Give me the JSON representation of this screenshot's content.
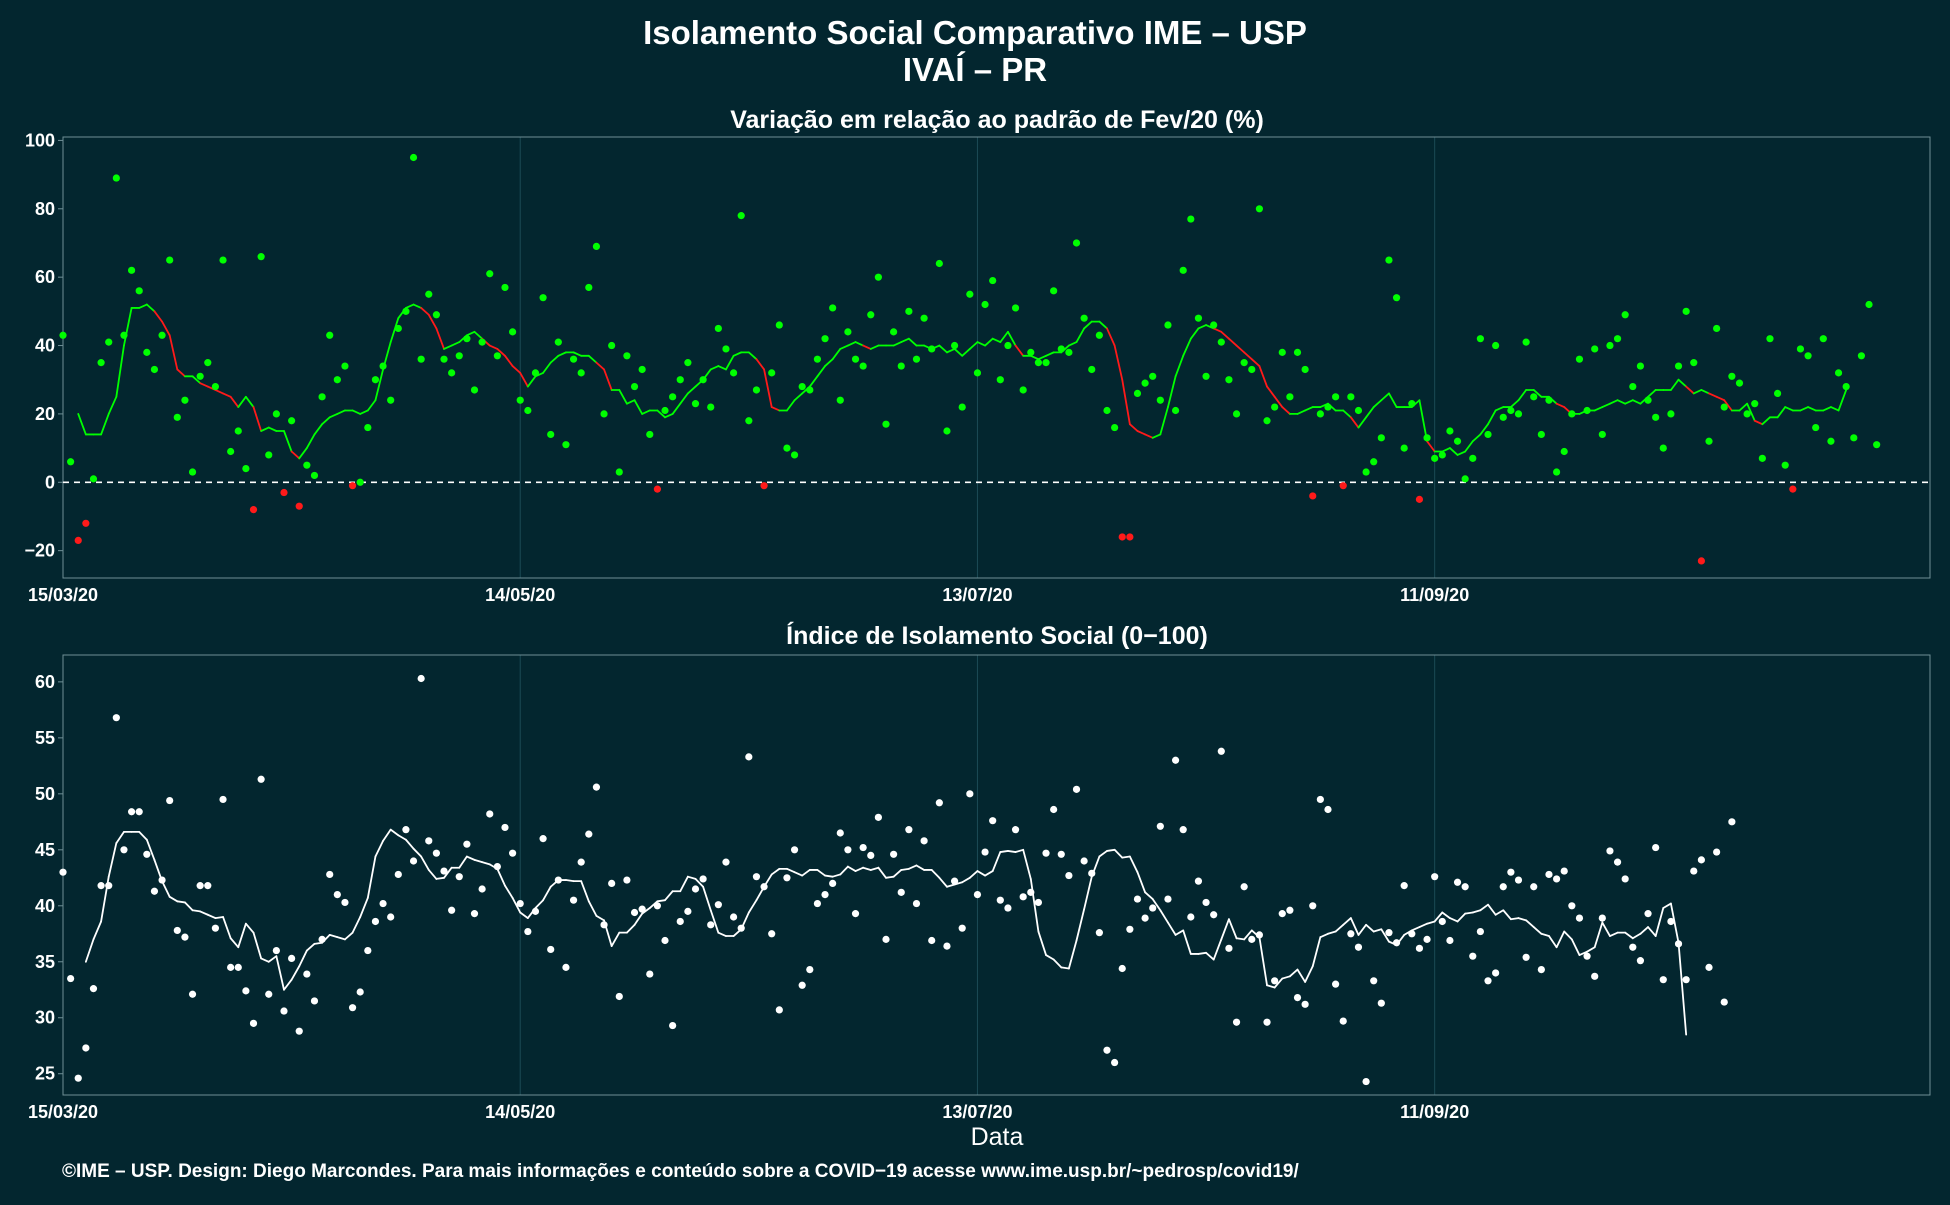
{
  "title": "Isolamento Social Comparativo IME – USP",
  "subtitle": "IVAÍ – PR",
  "caption": "©IME – USP. Design: Diego Marcondes. Para mais informações e conteúdo sobre a COVID−19 acesse www.ime.usp.br/~pedrosp/covid19/",
  "xlabel": "Data",
  "colors": {
    "background": "#03262f",
    "green": "#00ff00",
    "red": "#ff1a1a",
    "white": "#ffffff",
    "grid": "#1b4a55",
    "border": "#6f8f96"
  },
  "chart_data": [
    {
      "type": "scatter",
      "title": "Variação em relação ao padrão de Fev/20 (%)",
      "x_start": "15/03/20",
      "x_end": "15/11/20",
      "x_ticks": [
        "15/03/20",
        "14/05/20",
        "13/07/20",
        "11/09/20"
      ],
      "y_ticks": [
        "−20",
        "0",
        "20",
        "40",
        "60",
        "80",
        "100"
      ],
      "ylim": [
        -28,
        101
      ],
      "reference_line": 0,
      "grid": true,
      "series": [
        {
          "mark": "points",
          "color_rule": "green when value >= 0, red when value < 0",
          "values": [
            43,
            6,
            -17,
            -12,
            1,
            35,
            41,
            89,
            43,
            62,
            56,
            38,
            33,
            43,
            65,
            19,
            24,
            3,
            31,
            35,
            28,
            65,
            9,
            15,
            4,
            -8,
            66,
            8,
            20,
            -3,
            18,
            -7,
            5,
            2,
            25,
            43,
            30,
            34,
            -1,
            0,
            16,
            30,
            34,
            24,
            45,
            50,
            95,
            36,
            55,
            49,
            36,
            32,
            37,
            42,
            27,
            41,
            61,
            37,
            57,
            44,
            24,
            21,
            32,
            54,
            14,
            41,
            11,
            36,
            32,
            57,
            69,
            20,
            40,
            3,
            37,
            28,
            33,
            14,
            -2,
            21,
            25,
            30,
            35,
            23,
            30,
            22,
            45,
            39,
            32,
            78,
            18,
            27,
            -1,
            32,
            46,
            10,
            8,
            28,
            27,
            36,
            42,
            51,
            24,
            44,
            36,
            34,
            49,
            60,
            17,
            44,
            34,
            50,
            36,
            48,
            39,
            64,
            15,
            40,
            22,
            55,
            32,
            52,
            59,
            30,
            40,
            51,
            27,
            38,
            35,
            35,
            56,
            39,
            38,
            70,
            48,
            33,
            43,
            21,
            16,
            -16,
            -16,
            26,
            29,
            31,
            24,
            46,
            21,
            62,
            77,
            48,
            31,
            46,
            41,
            30,
            20,
            35,
            33,
            80,
            18,
            22,
            38,
            25,
            38,
            33,
            -4,
            20,
            22,
            25,
            -1,
            25,
            21,
            3,
            6,
            13,
            65,
            54,
            10,
            23,
            -5,
            13,
            7,
            8,
            15,
            12,
            1,
            7,
            42,
            14,
            40,
            19,
            21,
            20,
            41,
            25,
            14,
            24,
            3,
            9,
            20,
            36,
            21,
            39,
            14,
            40,
            42,
            49,
            28,
            34,
            24,
            19,
            10,
            20,
            34,
            50,
            35,
            -23,
            12,
            45,
            22,
            31,
            29,
            20,
            23,
            7,
            42,
            26,
            5,
            -2,
            39,
            37,
            16,
            42,
            12,
            32,
            28,
            13,
            37,
            52,
            11
          ]
        },
        {
          "mark": "line",
          "name": "moving average",
          "start_offset": 2,
          "values": [
            20,
            14,
            14,
            14,
            20,
            25,
            40,
            51,
            51,
            52,
            50,
            47,
            43,
            33,
            31,
            31,
            29,
            28,
            27,
            26,
            25,
            22,
            25,
            22,
            15,
            16,
            15,
            15,
            9,
            7,
            10,
            14,
            17,
            19,
            20,
            21,
            21,
            20,
            21,
            24,
            33,
            41,
            48,
            51,
            52,
            51,
            49,
            45,
            39,
            40,
            41,
            43,
            44,
            42,
            40,
            39,
            37,
            34,
            32,
            28,
            31,
            32,
            35,
            37,
            38,
            38,
            37,
            37,
            35,
            33,
            27,
            27,
            23,
            24,
            20,
            21,
            21,
            19,
            20,
            23,
            26,
            28,
            30,
            33,
            34,
            33,
            37,
            38,
            38,
            36,
            33,
            22,
            21,
            21,
            24,
            26,
            28,
            31,
            34,
            36,
            39,
            40,
            41,
            40,
            39,
            40,
            40,
            40,
            41,
            42,
            40,
            40,
            39,
            40,
            38,
            39,
            37,
            39,
            41,
            40,
            42,
            41,
            44,
            40,
            37,
            37,
            36,
            37,
            38,
            38,
            40,
            41,
            45,
            47,
            47,
            45,
            40,
            30,
            17,
            15,
            14,
            13,
            14,
            22,
            31,
            37,
            42,
            45,
            46,
            45,
            44,
            42,
            40,
            38,
            36,
            34,
            28,
            25,
            22,
            20,
            20,
            21,
            22,
            22,
            23,
            21,
            21,
            19,
            16,
            19,
            22,
            24,
            26,
            22,
            22,
            22,
            24,
            12,
            9,
            9,
            10,
            8,
            9,
            12,
            14,
            17,
            21,
            22,
            22,
            24,
            27,
            27,
            25,
            25,
            23,
            22,
            20,
            20,
            21,
            21,
            22,
            23,
            24,
            23,
            24,
            23,
            25,
            27,
            27,
            27,
            30,
            28,
            26,
            27,
            26,
            25,
            24,
            21,
            21,
            23,
            18,
            17,
            19,
            19,
            22,
            21,
            21,
            22,
            21,
            21,
            22,
            21,
            27
          ]
        }
      ]
    },
    {
      "type": "scatter",
      "title": "Índice de Isolamento Social (0−100)",
      "x_start": "15/03/20",
      "x_end": "15/11/20",
      "x_ticks": [
        "15/03/20",
        "14/05/20",
        "13/07/20",
        "11/09/20"
      ],
      "y_ticks": [
        "25",
        "30",
        "35",
        "40",
        "45",
        "50",
        "55",
        "60"
      ],
      "ylim": [
        23.1,
        62.4
      ],
      "grid": true,
      "series": [
        {
          "mark": "points",
          "color": "white",
          "values": [
            43,
            33.5,
            24.6,
            27.3,
            32.6,
            41.8,
            41.8,
            56.8,
            45,
            48.4,
            48.4,
            44.6,
            41.3,
            42.3,
            49.4,
            37.8,
            37.2,
            32.1,
            41.8,
            41.8,
            38,
            49.5,
            34.5,
            34.5,
            32.4,
            29.5,
            51.3,
            32.1,
            36,
            30.6,
            35.3,
            28.8,
            33.9,
            31.5,
            37,
            42.8,
            41,
            40.3,
            30.9,
            32.3,
            36,
            38.6,
            40.2,
            39,
            42.8,
            46.8,
            44,
            60.3,
            45.8,
            44.7,
            43.1,
            39.6,
            42.6,
            45.5,
            39.3,
            41.5,
            48.2,
            43.5,
            47,
            44.7,
            40.2,
            37.7,
            39.5,
            46,
            36.1,
            42.3,
            34.5,
            40.5,
            43.9,
            46.4,
            50.6,
            38.3,
            42,
            31.9,
            42.3,
            39.4,
            39.7,
            33.9,
            40,
            36.9,
            29.3,
            38.6,
            39.5,
            41.5,
            42.4,
            38.3,
            40.1,
            43.9,
            39,
            38,
            53.3,
            42.6,
            41.7,
            37.5,
            30.7,
            42.5,
            45,
            32.9,
            34.3,
            40.2,
            41,
            42,
            46.5,
            45,
            39.3,
            45.2,
            44.5,
            47.9,
            37,
            44.6,
            41.2,
            46.8,
            40.2,
            45.8,
            36.9,
            49.2,
            36.4,
            42.2,
            38,
            50,
            41,
            44.8,
            47.6,
            40.5,
            39.8,
            46.8,
            40.8,
            41.2,
            40.3,
            44.7,
            48.6,
            44.6,
            42.7,
            50.4,
            44,
            42.9,
            37.6,
            27.1,
            26,
            34.4,
            37.9,
            40.6,
            38.9,
            39.8,
            47.1,
            40.6,
            53,
            46.8,
            39,
            42.2,
            40.3,
            39.2,
            53.8,
            36.2,
            29.6,
            41.7,
            37,
            37.4,
            29.6,
            33.3,
            39.3,
            39.6,
            31.8,
            31.2,
            40,
            49.5,
            48.6,
            33,
            29.7,
            37.5,
            36.3,
            24.3,
            33.3,
            31.3,
            37.6,
            36.7,
            41.8,
            37.5,
            36.2,
            37,
            42.6,
            38.6,
            36.9,
            42.1,
            41.7,
            35.5,
            37.7,
            33.3,
            34,
            41.7,
            43,
            42.3,
            35.4,
            41.7,
            34.3,
            42.8,
            42.4,
            43.1,
            40,
            38.9,
            35.5,
            33.7,
            38.9,
            44.9,
            43.9,
            42.4,
            36.3,
            35.1,
            39.3,
            45.2,
            33.4,
            38.6,
            36.6,
            33.4,
            43.1,
            44.1,
            34.5,
            44.8,
            31.4,
            47.5
          ]
        },
        {
          "mark": "line",
          "name": "moving average",
          "start_offset": 3,
          "values": [
            35,
            37,
            38.6,
            42.6,
            45.6,
            46.6,
            46.6,
            46.6,
            45.9,
            44.1,
            42.2,
            40.8,
            40.4,
            40.3,
            39.6,
            39.5,
            39.2,
            38.9,
            39,
            37.1,
            36.3,
            38.4,
            37.6,
            35.3,
            35,
            35.5,
            32.5,
            33.4,
            34.6,
            36,
            36.6,
            36.7,
            37.4,
            37.2,
            37,
            37.6,
            39,
            40.7,
            44.4,
            45.8,
            46.8,
            46.3,
            45.9,
            45.1,
            44.4,
            43.2,
            42.4,
            42.5,
            43.4,
            43.4,
            44.4,
            44.1,
            43.9,
            43.7,
            43.3,
            41.8,
            40.7,
            39.4,
            38.9,
            39.8,
            40.5,
            41.7,
            42.3,
            42.3,
            42.2,
            42.2,
            40.4,
            39.1,
            38.7,
            36.4,
            37.6,
            37.6,
            38.3,
            39.3,
            39.8,
            40.4,
            40.5,
            41.3,
            41.3,
            42.6,
            42.4,
            41.7,
            39.6,
            37.6,
            37.3,
            37.3,
            37.9,
            39.4,
            40.5,
            41.7,
            42.8,
            43.3,
            43.3,
            43,
            42.7,
            43.2,
            43.2,
            42.7,
            42.6,
            42.8,
            43.5,
            43.1,
            43.4,
            43.2,
            43.4,
            42.5,
            42.6,
            43.2,
            43.3,
            43.6,
            43.2,
            43.2,
            42.5,
            41.7,
            41.9,
            42.1,
            42.5,
            43.1,
            42.7,
            43.1,
            44.8,
            44.9,
            44.8,
            45,
            42.4,
            37.7,
            35.6,
            35.2,
            34.5,
            34.4,
            36.9,
            39.7,
            42.6,
            44.4,
            44.9,
            45,
            44.3,
            44.4,
            43,
            41.2,
            40.6,
            39.6,
            38.5,
            37.4,
            37.8,
            35.7,
            35.7,
            35.8,
            35.2,
            37,
            38.8,
            37.1,
            37,
            37.8,
            37.2,
            32.9,
            32.7,
            33.5,
            33.7,
            34.3,
            33.2,
            34.6,
            37.2,
            37.5,
            37.7,
            38.3,
            38.9,
            37.4,
            38.3,
            37.7,
            37.9,
            36.8,
            36.5,
            37.4,
            37.8,
            38.1,
            38.4,
            38.6,
            39.4,
            38.9,
            38.6,
            39.3,
            39.4,
            39.6,
            40.1,
            39.2,
            39.6,
            38.8,
            38.9,
            38.7,
            38.1,
            37.5,
            37.3,
            36.3,
            37.7,
            37,
            35.6,
            35.9,
            36.3,
            38.5,
            37.3,
            37.6,
            37.6,
            37.1,
            37.5,
            38.1,
            37.3,
            39.8,
            40.2,
            36.7,
            28.5
          ]
        }
      ]
    }
  ]
}
